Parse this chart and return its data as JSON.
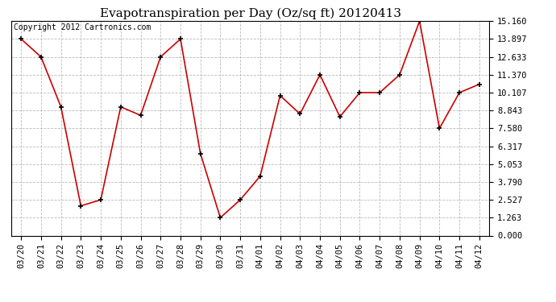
{
  "title": "Evapotranspiration per Day (Oz/sq ft) 20120413",
  "copyright": "Copyright 2012 Cartronics.com",
  "x_labels": [
    "03/20",
    "03/21",
    "03/22",
    "03/23",
    "03/24",
    "03/25",
    "03/26",
    "03/27",
    "03/28",
    "03/29",
    "03/30",
    "03/31",
    "04/01",
    "04/02",
    "04/03",
    "04/04",
    "04/05",
    "04/06",
    "04/07",
    "04/08",
    "04/09",
    "04/10",
    "04/11",
    "04/12"
  ],
  "y_values": [
    13.897,
    12.633,
    9.1,
    2.1,
    2.527,
    9.1,
    8.5,
    12.633,
    13.897,
    5.8,
    1.263,
    2.527,
    4.2,
    9.9,
    8.6,
    11.37,
    8.4,
    10.107,
    10.107,
    11.37,
    15.16,
    7.58,
    10.107,
    10.7
  ],
  "y_ticks": [
    0.0,
    1.263,
    2.527,
    3.79,
    5.053,
    6.317,
    7.58,
    8.843,
    10.107,
    11.37,
    12.633,
    13.897,
    15.16
  ],
  "y_tick_labels": [
    "0.000",
    "1.263",
    "2.527",
    "3.790",
    "5.053",
    "6.317",
    "7.580",
    "8.843",
    "10.107",
    "11.370",
    "12.633",
    "13.897",
    "15.160"
  ],
  "y_min": 0.0,
  "y_max": 15.16,
  "line_color": "#cc0000",
  "marker": "+",
  "marker_color": "#000000",
  "bg_color": "#ffffff",
  "grid_color": "#bbbbbb",
  "title_fontsize": 11,
  "copyright_fontsize": 7,
  "tick_fontsize": 7.5,
  "fig_width": 6.9,
  "fig_height": 3.75,
  "dpi": 100
}
